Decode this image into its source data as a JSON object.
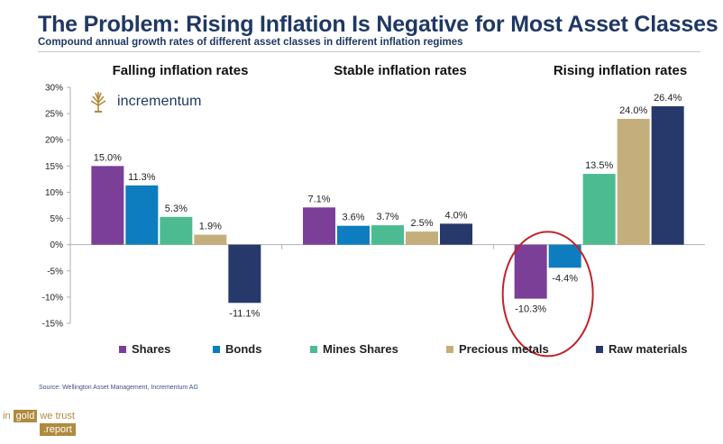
{
  "header": {
    "title": "The Problem: Rising Inflation Is Negative for Most Asset Classes",
    "subtitle": "Compound annual growth rates of different asset classes in different inflation regimes"
  },
  "logo": {
    "text": "incrementum"
  },
  "source": "Source: Wellington Asset Management, Incrementum AG",
  "brand": {
    "w1": "in",
    "w2": "gold",
    "w3": "we trust",
    "w4": ".report"
  },
  "chart_data": {
    "type": "bar",
    "title": "The Problem: Rising Inflation Is Negative for Most Asset Classes",
    "subtitle": "Compound annual growth rates of different asset classes in different inflation regimes",
    "groups": [
      "Falling inflation rates",
      "Stable inflation rates",
      "Rising inflation rates"
    ],
    "series": [
      {
        "name": "Shares",
        "color": "#7b3f98",
        "values": [
          15.0,
          7.1,
          -10.3
        ],
        "labels": [
          "15.0%",
          "7.1%",
          "-10.3%"
        ]
      },
      {
        "name": "Bonds",
        "color": "#0e7dbf",
        "values": [
          11.3,
          3.6,
          -4.4
        ],
        "labels": [
          "11.3%",
          "3.6%",
          "-4.4%"
        ]
      },
      {
        "name": "Mines Shares",
        "color": "#4dbb92",
        "values": [
          5.3,
          3.7,
          13.5
        ],
        "labels": [
          "5.3%",
          "3.7%",
          "13.5%"
        ]
      },
      {
        "name": "Precious metals",
        "color": "#c4af7c",
        "values": [
          1.9,
          2.5,
          24.0
        ],
        "labels": [
          "1.9%",
          "2.5%",
          "24.0%"
        ]
      },
      {
        "name": "Raw materials",
        "color": "#26396a",
        "values": [
          -11.1,
          4.0,
          26.4
        ],
        "labels": [
          "-11.1%",
          "4.0%",
          "26.4%"
        ]
      }
    ],
    "yticks": [
      30,
      25,
      20,
      15,
      10,
      5,
      0,
      -5,
      -10,
      -15
    ],
    "ytick_labels": [
      "30%",
      "25%",
      "20%",
      "15%",
      "10%",
      "5%",
      "0%",
      "-5%",
      "-10%",
      "-15%"
    ],
    "ylim": [
      -15,
      30
    ],
    "grid": false,
    "legend": "bottom",
    "highlight": {
      "group": "Rising inflation rates",
      "series": [
        "Shares",
        "Bonds"
      ],
      "color": "#c0232b"
    }
  }
}
